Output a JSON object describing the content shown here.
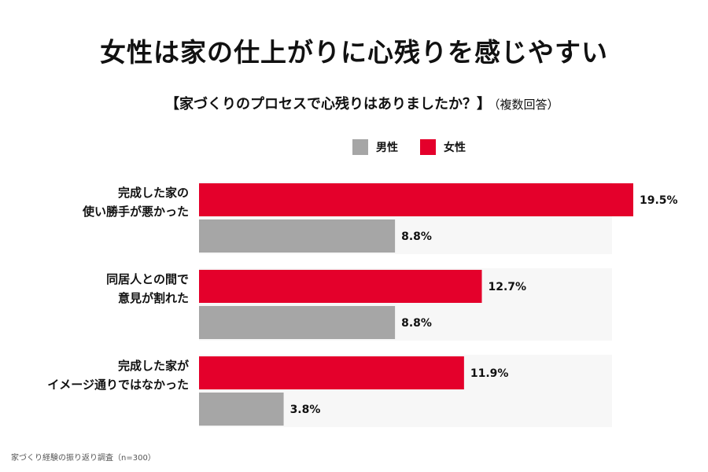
{
  "header": {
    "title": "女性は家の仕上がりに心残りを感じやすい",
    "question": "【家づくりのプロセスで心残りはありましたか？】",
    "question_note": "（複数回答）"
  },
  "footnote": "家づくり経験の振り返り調査（n=300）",
  "colors": {
    "male": "#a6a6a6",
    "female": "#e4002b"
  },
  "chart_data": {
    "type": "bar",
    "orientation": "horizontal",
    "categories": [
      [
        "完成した家の",
        "使い勝手が悪かった"
      ],
      [
        "同居人との間で",
        "意見が割れた"
      ],
      [
        "完成した家が",
        "イメージ通りではなかった"
      ]
    ],
    "series": [
      {
        "name": "女性",
        "values": [
          19.5,
          12.7,
          11.9
        ],
        "labels": [
          "19.5%",
          "12.7%",
          "11.9%"
        ]
      },
      {
        "name": "男性",
        "values": [
          8.8,
          8.8,
          3.8
        ],
        "labels": [
          "8.8%",
          "8.8%",
          "3.8%"
        ]
      }
    ],
    "legend": [
      {
        "name": "男性",
        "color": "#a6a6a6"
      },
      {
        "name": "女性",
        "color": "#e4002b"
      }
    ],
    "legend_position": "top",
    "unit": "%",
    "xlim": [
      0,
      19.5
    ],
    "grid": false
  }
}
